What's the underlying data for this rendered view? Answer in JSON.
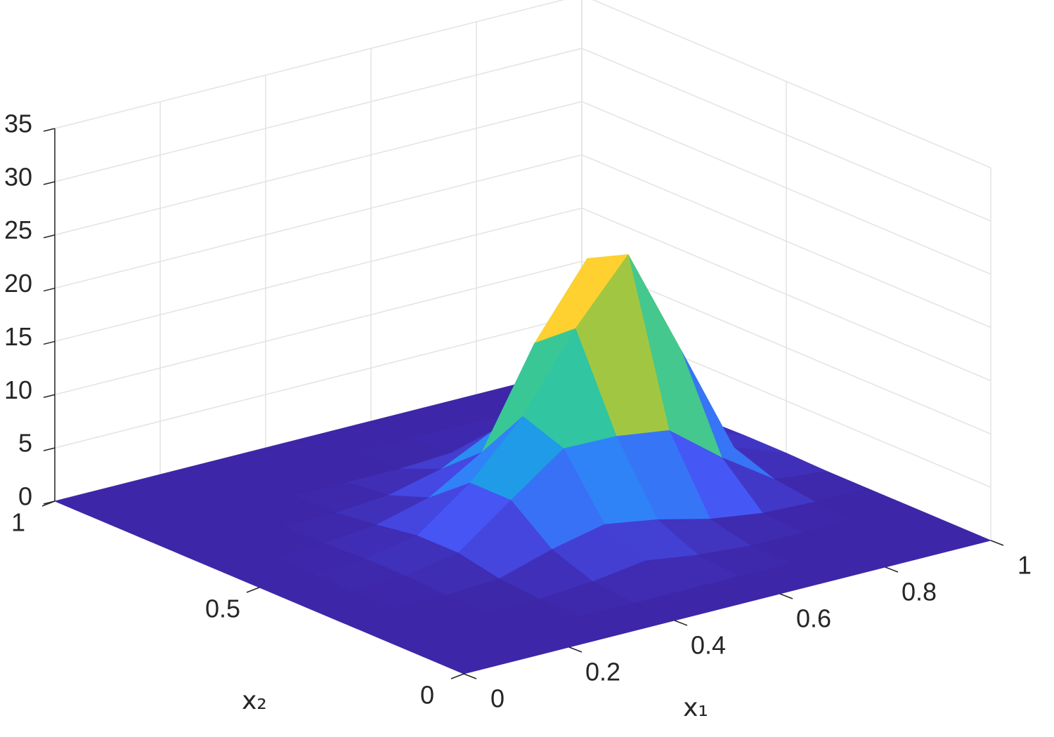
{
  "chart_data": {
    "type": "surface",
    "x": [
      0,
      0.1,
      0.2,
      0.3,
      0.4,
      0.5,
      0.6,
      0.7,
      0.8,
      0.9,
      1
    ],
    "y": [
      0,
      0.1,
      0.2,
      0.3,
      0.4,
      0.5,
      0.6,
      0.7,
      0.8,
      0.9,
      1
    ],
    "z": [
      [
        0,
        0,
        0,
        0,
        0,
        0,
        0,
        0,
        0,
        0,
        0
      ],
      [
        0,
        0,
        0,
        0,
        0,
        0,
        0,
        0,
        0,
        0,
        0
      ],
      [
        0,
        0,
        0,
        0,
        0.4,
        1.1,
        0.4,
        0,
        0,
        0,
        0
      ],
      [
        0,
        0,
        0,
        0.3,
        1.8,
        2.9,
        2.1,
        0.9,
        0.2,
        0,
        0
      ],
      [
        0,
        0,
        0.2,
        1.1,
        4.8,
        8.4,
        8.3,
        7.6,
        3.8,
        0.5,
        0
      ],
      [
        0,
        0,
        0.2,
        1.1,
        4.8,
        9.8,
        16.8,
        22.5,
        12.3,
        1.9,
        0.1
      ],
      [
        0,
        0,
        0,
        0.5,
        1.8,
        4.8,
        13.8,
        20.5,
        12.2,
        1.9,
        0.1
      ],
      [
        0,
        0,
        0,
        0,
        0.4,
        1.6,
        4.0,
        6.8,
        3.5,
        0.5,
        0
      ],
      [
        0,
        0,
        0,
        0,
        0,
        0,
        0.3,
        0.5,
        0.3,
        0,
        0
      ],
      [
        0,
        0,
        0,
        0,
        0,
        0,
        0,
        0,
        0,
        0,
        0
      ],
      [
        0,
        0,
        0,
        0,
        0,
        0,
        0,
        0,
        0,
        0,
        0
      ]
    ],
    "xlim": [
      0,
      1
    ],
    "ylim": [
      0,
      1
    ],
    "zlim": [
      0,
      35
    ],
    "xticks": [
      0,
      0.2,
      0.4,
      0.6,
      0.8,
      1
    ],
    "yticks": [
      0,
      0.5,
      1
    ],
    "zticks": [
      0,
      5,
      10,
      15,
      20,
      25,
      30,
      35
    ],
    "xlabel": "x₁",
    "ylabel": "x₂",
    "colormap": "parula",
    "grid": true
  }
}
